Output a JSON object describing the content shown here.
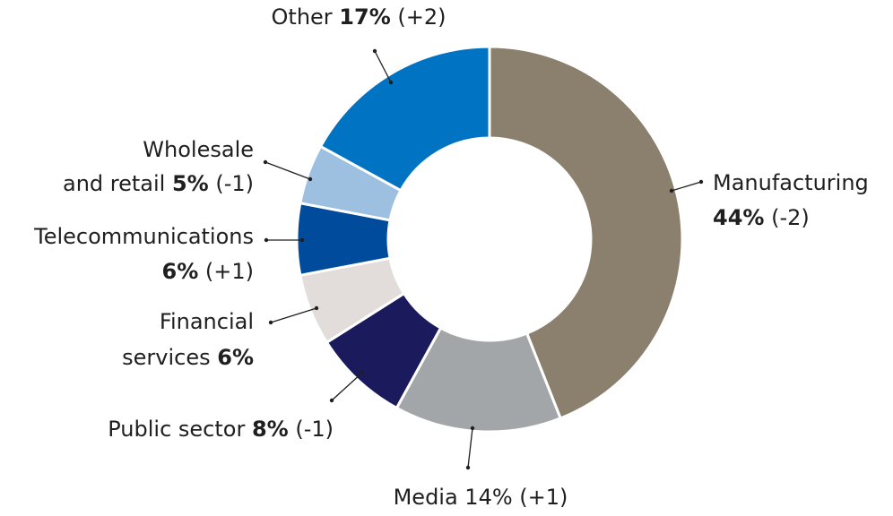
{
  "chart_data": {
    "type": "pie",
    "subtype": "donut",
    "slices": [
      {
        "name": "Manufacturing",
        "value": 44,
        "change": "(-2)",
        "color": "#8b7f6e",
        "label_lines": [
          {
            "plain": "Manufacturing"
          },
          {
            "bold": "44%",
            "plain": " (-2)"
          }
        ]
      },
      {
        "name": "Media",
        "value": 14,
        "change": "(+1)",
        "color": "#a2a6a8",
        "label_lines": [
          {
            "plain": "Media 14% (+1)"
          }
        ]
      },
      {
        "name": "Public sector",
        "value": 8,
        "change": "(-1)",
        "color": "#1a1a5c",
        "label_lines": [
          {
            "plain": "Public sector ",
            "bold": "8%",
            "plain2": " (-1)"
          }
        ]
      },
      {
        "name": "Financial services",
        "value": 6,
        "change": "",
        "color": "#e2dcda",
        "label_lines": [
          {
            "plain": "Financial"
          },
          {
            "plain": "services ",
            "bold": "6%"
          }
        ]
      },
      {
        "name": "Telecommunications",
        "value": 6,
        "change": "(+1)",
        "color": "#004b9b",
        "label_lines": [
          {
            "plain": "Telecommunications"
          },
          {
            "bold": "6%",
            "plain": " (+1)"
          }
        ]
      },
      {
        "name": "Wholesale and retail",
        "value": 5,
        "change": "(-1)",
        "color": "#9dbfe0",
        "label_lines": [
          {
            "plain": "Wholesale"
          },
          {
            "plain": "and retail ",
            "bold": "5%",
            "plain2": " (-1)"
          }
        ]
      },
      {
        "name": "Other",
        "value": 17,
        "change": "(+2)",
        "color": "#0173c3",
        "label_lines": [
          {
            "plain": "Other ",
            "bold": "17%",
            "plain2": " (+2)"
          }
        ]
      }
    ],
    "start": "top",
    "direction": "clockwise"
  }
}
